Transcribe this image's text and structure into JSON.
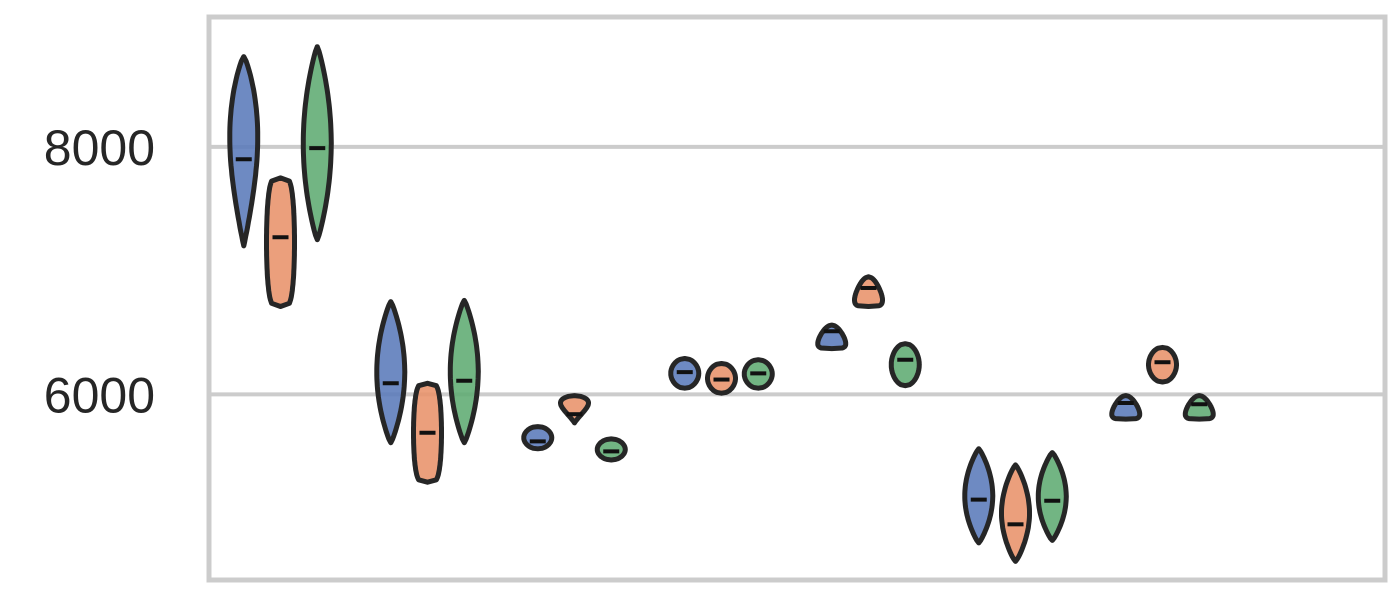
{
  "chart_data": {
    "type": "violin",
    "title": "",
    "xlabel": "",
    "ylabel": "",
    "ylim": [
      4500,
      9050
    ],
    "yticks": [
      6000,
      8000
    ],
    "grid": "horizontal",
    "legend": "none",
    "groups": 8,
    "series": [
      {
        "color": "#5a7ab9",
        "violins": [
          {
            "min": 7200,
            "max": 8730,
            "median": 7900,
            "shape": "peak-upper"
          },
          {
            "min": 5610,
            "max": 6750,
            "median": 6090,
            "shape": "peak-middle"
          },
          {
            "min": 5560,
            "max": 5740,
            "median": 5620,
            "shape": "round"
          },
          {
            "min": 6050,
            "max": 6290,
            "median": 6180,
            "shape": "round"
          },
          {
            "min": 6370,
            "max": 6560,
            "median": 6510,
            "shape": "top-heavy"
          },
          {
            "min": 4800,
            "max": 5560,
            "median": 5150,
            "shape": "peak-middle"
          },
          {
            "min": 5800,
            "max": 5990,
            "median": 5930,
            "shape": "top-heavy"
          },
          {
            "min": null,
            "max": null,
            "median": null,
            "shape": "none"
          }
        ]
      },
      {
        "color": "#e8926a",
        "violins": [
          {
            "min": 6710,
            "max": 7750,
            "median": 7270,
            "shape": "box"
          },
          {
            "min": 5290,
            "max": 6090,
            "median": 5690,
            "shape": "box"
          },
          {
            "min": 5770,
            "max": 5990,
            "median": 5840,
            "shape": "bottom-heavy"
          },
          {
            "min": 6010,
            "max": 6250,
            "median": 6120,
            "shape": "round"
          },
          {
            "min": 6710,
            "max": 6950,
            "median": 6860,
            "shape": "top-heavy"
          },
          {
            "min": 4650,
            "max": 5430,
            "median": 4950,
            "shape": "peak-middle"
          },
          {
            "min": 6100,
            "max": 6380,
            "median": 6260,
            "shape": "round"
          },
          {
            "min": null,
            "max": null,
            "median": null,
            "shape": "none"
          }
        ]
      },
      {
        "color": "#5fab72",
        "violins": [
          {
            "min": 7250,
            "max": 8810,
            "median": 7990,
            "shape": "peak-middle"
          },
          {
            "min": 5610,
            "max": 6760,
            "median": 6110,
            "shape": "peak-middle"
          },
          {
            "min": 5470,
            "max": 5640,
            "median": 5540,
            "shape": "round"
          },
          {
            "min": 6050,
            "max": 6280,
            "median": 6170,
            "shape": "round"
          },
          {
            "min": 6070,
            "max": 6410,
            "median": 6280,
            "shape": "round"
          },
          {
            "min": 4820,
            "max": 5530,
            "median": 5140,
            "shape": "peak-middle"
          },
          {
            "min": 5800,
            "max": 5990,
            "median": 5920,
            "shape": "top-heavy"
          },
          {
            "min": null,
            "max": null,
            "median": null,
            "shape": "none"
          }
        ]
      }
    ]
  }
}
